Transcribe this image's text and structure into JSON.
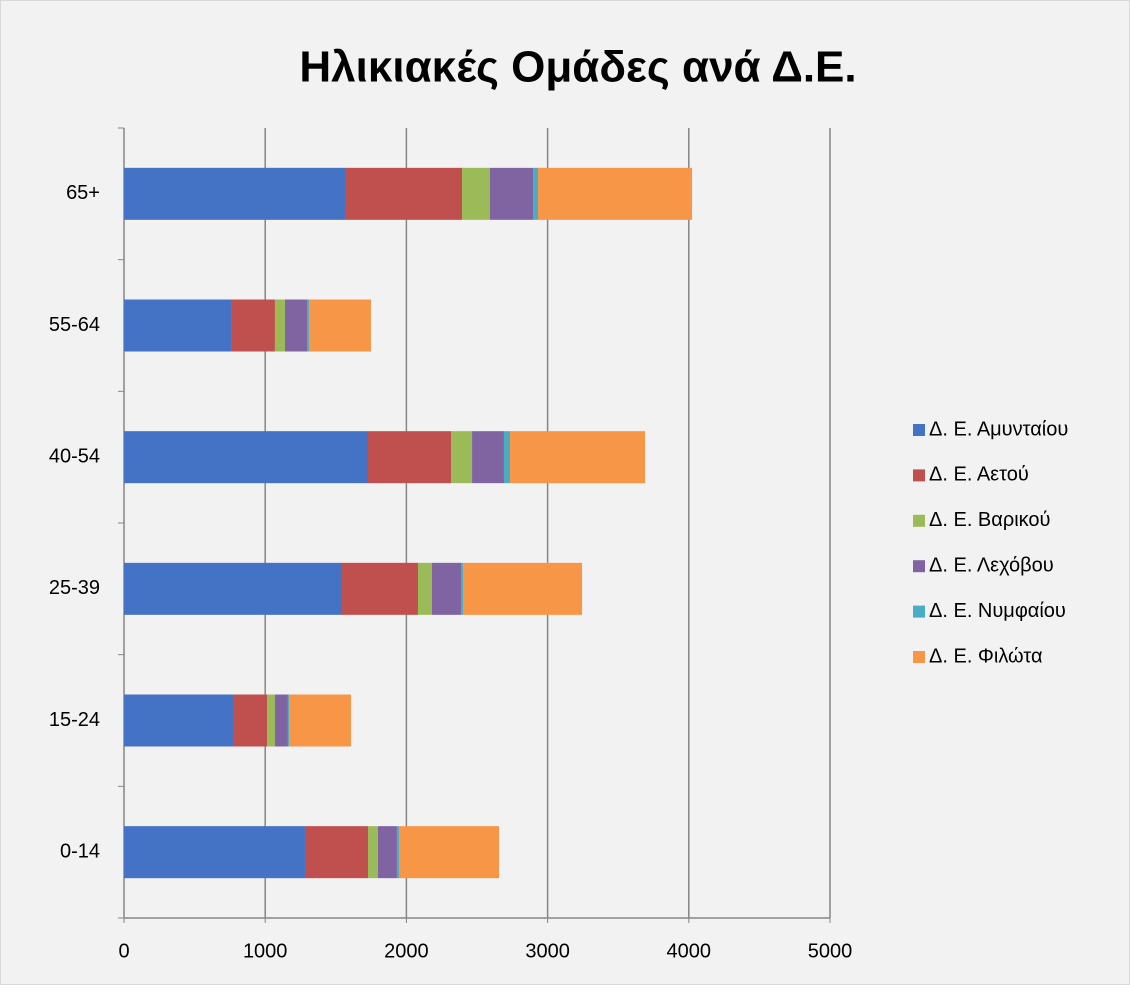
{
  "chart_data": {
    "type": "stacked-bar-horizontal",
    "title": "Ηλικιακές Ομάδες ανά Δ.Ε.",
    "categories": [
      "0-14",
      "15-24",
      "25-39",
      "40-54",
      "55-64",
      "65+"
    ],
    "series": [
      {
        "name": "Δ. Ε. Αμυνταίου",
        "color": "#4472c4",
        "values": [
          1282,
          772,
          1544,
          1728,
          758,
          1572
        ]
      },
      {
        "name": "Δ. Ε. Αετού",
        "color": "#c0504d",
        "values": [
          446,
          241,
          538,
          588,
          311,
          822
        ]
      },
      {
        "name": "Δ. Ε. Βαρικού",
        "color": "#9bbb59",
        "values": [
          71,
          56,
          99,
          149,
          71,
          198
        ]
      },
      {
        "name": "Δ. Ε. Λεχόβου",
        "color": "#8064a2",
        "values": [
          134,
          92,
          206,
          226,
          156,
          305
        ]
      },
      {
        "name": "Δ. Ε. Νυμφαίου",
        "color": "#4bacc6",
        "values": [
          15,
          8,
          14,
          43,
          14,
          35
        ]
      },
      {
        "name": "Δ. Ε. Φιλώτα",
        "color": "#f79646",
        "values": [
          708,
          439,
          843,
          956,
          439,
          1091
        ]
      }
    ],
    "xlim": [
      0,
      5000
    ],
    "xticks": [
      0,
      1000,
      2000,
      3000,
      4000,
      5000
    ],
    "grid": true,
    "legend": "right"
  }
}
